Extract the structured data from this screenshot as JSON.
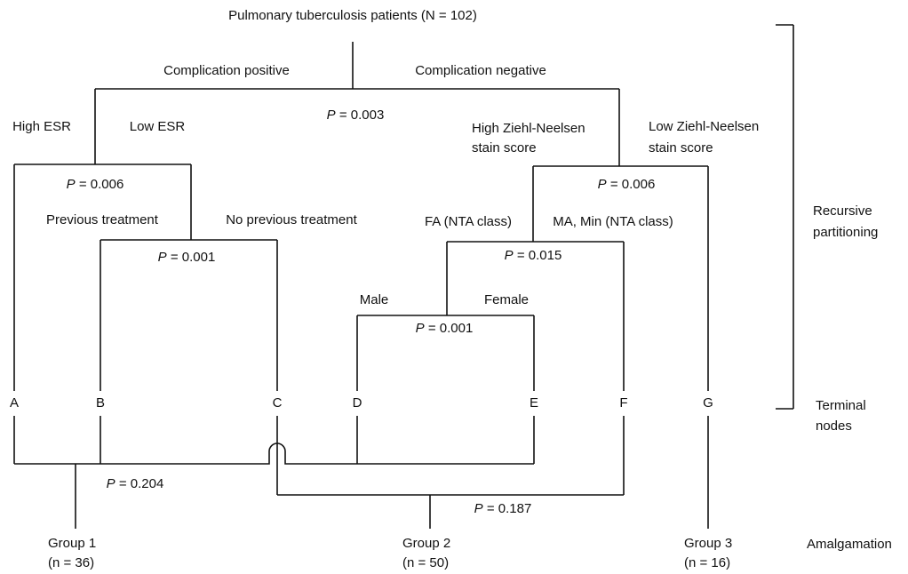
{
  "title": "Pulmonary tuberculosis patients (N = 102)",
  "branch_labels": [
    "Complication positive",
    "Complication negative",
    "High ESR",
    "Low ESR",
    [
      "High Ziehl-Neelsen",
      "stain score"
    ],
    [
      "Low Ziehl-Neelsen",
      "stain score"
    ],
    "Previous treatment",
    "No previous treatment",
    "FA (NTA class)",
    "MA, Min (NTA class)",
    "Male",
    "Female"
  ],
  "p_values": [
    {
      "symbol": "P",
      "value": "= 0.003"
    },
    {
      "symbol": "P",
      "value": "= 0.006"
    },
    {
      "symbol": "P",
      "value": "= 0.006"
    },
    {
      "symbol": "P",
      "value": "= 0.001"
    },
    {
      "symbol": "P",
      "value": "= 0.015"
    },
    {
      "symbol": "P",
      "value": "= 0.001"
    },
    {
      "symbol": "P",
      "value": "= 0.204"
    },
    {
      "symbol": "P",
      "value": "= 0.187"
    }
  ],
  "terminal_nodes": [
    "A",
    "B",
    "C",
    "D",
    "E",
    "F",
    "G"
  ],
  "groups": [
    {
      "name": "Group 1",
      "n": "(n = 36)"
    },
    {
      "name": "Group 2",
      "n": "(n = 50)"
    },
    {
      "name": "Group 3",
      "n": "(n = 16)"
    }
  ],
  "side_labels": {
    "recursive": [
      "Recursive",
      "partitioning"
    ],
    "terminal": [
      "Terminal",
      "nodes"
    ],
    "amalgamation": "Amalgamation"
  }
}
